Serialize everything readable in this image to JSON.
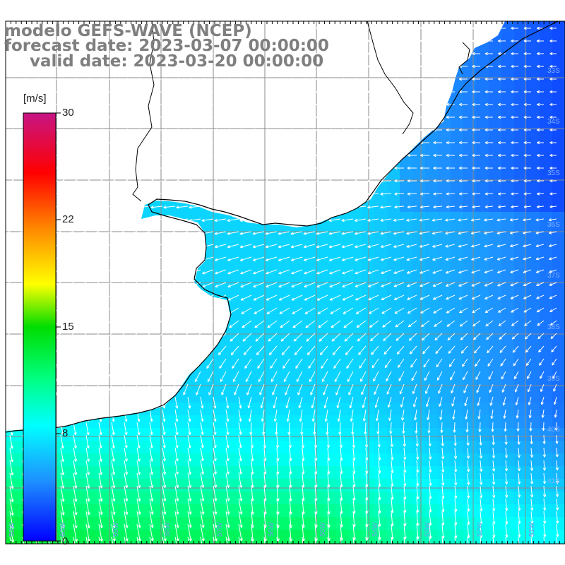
{
  "title": {
    "model": "modelo GEFS-WAVE (NCEP)",
    "forecast": "forecast date: 2023-03-07 00:00:00",
    "valid": "valid date: 2023-03-20 00:00:00"
  },
  "colorbar": {
    "unit": "[m/s]",
    "ticks": [
      "30",
      "22",
      "15",
      "8",
      "0"
    ],
    "tick_values": [
      30,
      22,
      15,
      8,
      0
    ],
    "range": [
      0,
      30
    ],
    "colors": [
      "#0000ff",
      "#1e90ff",
      "#00ffff",
      "#00dd00",
      "#ffff00",
      "#ff8800",
      "#ff0000",
      "#c71585"
    ]
  },
  "map": {
    "land_color": "#ffffff",
    "grid_color": "#8a8a8a",
    "coast_color": "#000000",
    "arrow_color": "#ffffff",
    "lat_labels": [
      "33S",
      "34S",
      "35S",
      "36S",
      "37S",
      "38S",
      "39S",
      "40S",
      "41S"
    ],
    "lon_labels": [
      "60W",
      "59W",
      "58W",
      "57W",
      "56W",
      "55W",
      "54W",
      "53W",
      "52W",
      "51W",
      "50W"
    ]
  }
}
